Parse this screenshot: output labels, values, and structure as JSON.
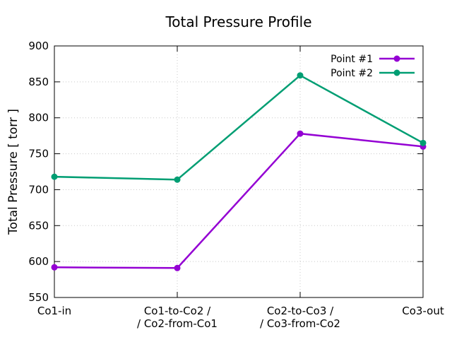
{
  "chart_data": {
    "type": "line",
    "title": "Total Pressure Profile",
    "xlabel": "",
    "ylabel": "Total Pressure [ torr ]",
    "categories": [
      [
        "Co1-in"
      ],
      [
        "Co1-to-Co2 /",
        "/ Co2-from-Co1"
      ],
      [
        "Co2-to-Co3 /",
        "/ Co3-from-Co2"
      ],
      [
        "Co3-out"
      ]
    ],
    "series": [
      {
        "name": "Point #1",
        "color": "#9400d3",
        "values": [
          592,
          591,
          778,
          760
        ]
      },
      {
        "name": "Point #2",
        "color": "#009e73",
        "values": [
          718,
          714,
          859,
          765
        ]
      }
    ],
    "ylim": [
      550,
      900
    ],
    "yticks": [
      550,
      600,
      650,
      700,
      750,
      800,
      850,
      900
    ],
    "grid": true,
    "grid_style": "dotted",
    "legend_position": "top-right",
    "marker": "filled-circle",
    "colors": {
      "background": "#ffffff",
      "axis": "#000000",
      "grid": "#c8c8c8",
      "text": "#000000"
    }
  }
}
